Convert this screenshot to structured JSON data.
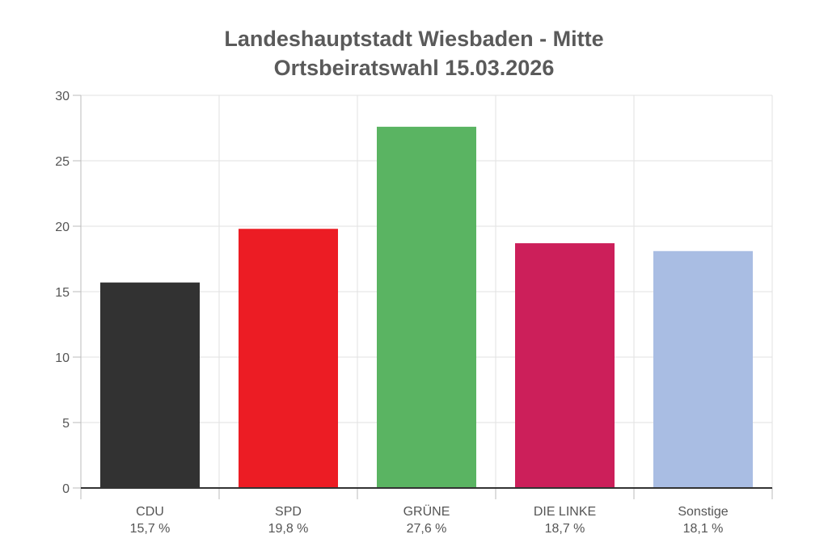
{
  "chart_data": {
    "type": "bar",
    "title": [
      "Landeshauptstadt Wiesbaden - Mitte",
      "Ortsbeiratswahl 15.03.2026"
    ],
    "categories": [
      "CDU",
      "SPD",
      "GRÜNE",
      "DIE LINKE",
      "Sonstige"
    ],
    "values": [
      15.7,
      19.8,
      27.6,
      18.7,
      18.1
    ],
    "value_labels": [
      "15,7 %",
      "19,8 %",
      "27,6 %",
      "18,7 %",
      "18,1 %"
    ],
    "colors": [
      "#323232",
      "#ec1c24",
      "#5ab462",
      "#cc1f5a",
      "#a9bde3"
    ],
    "ylim": [
      0,
      30
    ],
    "yticks": [
      0,
      5,
      10,
      15,
      20,
      25,
      30
    ],
    "grid": true,
    "xlabel": "",
    "ylabel": ""
  }
}
